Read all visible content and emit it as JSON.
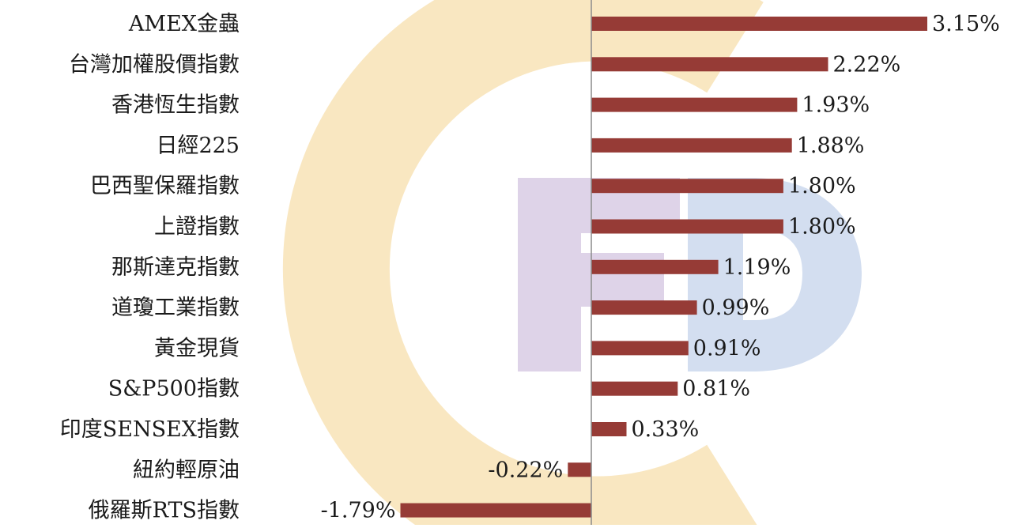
{
  "chart_data": {
    "type": "bar",
    "orientation": "horizontal",
    "categories": [
      "AMEX金蟲",
      "台灣加權股價指數",
      "香港恆生指數",
      "日經225",
      "巴西聖保羅指數",
      "上證指數",
      "那斯達克指數",
      "道瓊工業指數",
      "黃金現貨",
      "S&P500指數",
      "印度SENSEX指數",
      "紐約輕原油",
      "俄羅斯RTS指數"
    ],
    "values": [
      3.15,
      2.22,
      1.93,
      1.88,
      1.8,
      1.8,
      1.19,
      0.99,
      0.91,
      0.81,
      0.33,
      -0.22,
      -1.79
    ],
    "data_labels": [
      "3.15%",
      "2.22%",
      "1.93%",
      "1.88%",
      "1.80%",
      "1.80%",
      "1.19%",
      "0.99%",
      "0.91%",
      "0.81%",
      "0.33%",
      "-0.22%",
      "-1.79%"
    ],
    "unit": "%",
    "xlim": [
      -2.0,
      3.15
    ],
    "grid": false,
    "legend": "none",
    "title": "",
    "xlabel": "",
    "ylabel": "",
    "colors": {
      "bar": "#963B36",
      "axis": "#8C8C8C",
      "text": "#1A1A1A",
      "watermark_ring": "#F8E3B6",
      "watermark_f": "#DED3E8",
      "watermark_d": "#D3DEF0"
    },
    "watermark": {
      "text": "FD",
      "icon": "fd-logo-watermark"
    }
  }
}
